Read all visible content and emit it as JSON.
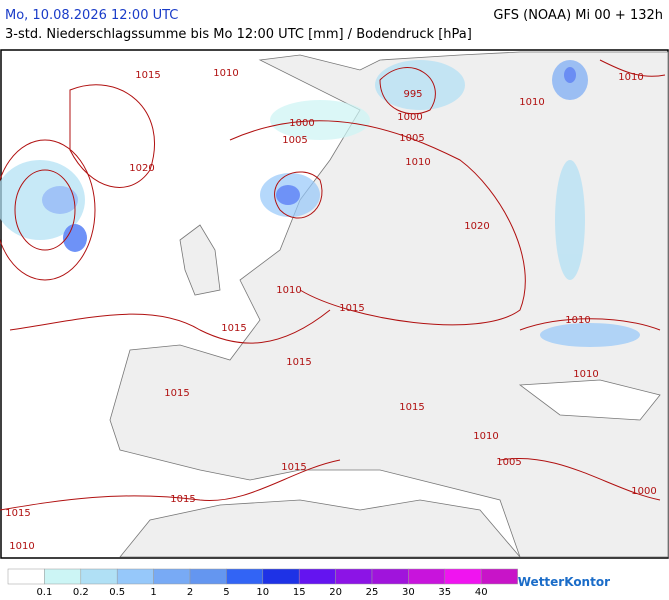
{
  "header": {
    "date": "Mo, 10.08.2026 12:00 UTC",
    "model": "GFS (NOAA) Mi 00 + 132h",
    "subtitle": "3-std. Niederschlagssumme bis Mo 12:00 UTC [mm] / Bodendruck [hPa]"
  },
  "isobar_labels": [
    1015,
    1010,
    1010,
    1010,
    995,
    1000,
    1000,
    1005,
    1005,
    1010,
    1020,
    1020,
    1010,
    1015,
    1015,
    1010,
    1015,
    1010,
    1015,
    1015,
    1010,
    1005,
    1015,
    1015,
    1000,
    1015,
    1010
  ],
  "legend": {
    "colors": [
      "#ffffff",
      "#ccf5f5",
      "#b0e0f5",
      "#96c8fa",
      "#78aaf5",
      "#6496f0",
      "#3264f5",
      "#1e32e6",
      "#6414f0",
      "#8c14e6",
      "#a014dc",
      "#c814dc",
      "#f014f0",
      "#c814c8"
    ],
    "thresholds": [
      0.1,
      0.2,
      0.5,
      1,
      2,
      5,
      10,
      15,
      20,
      25,
      30,
      35,
      40
    ]
  },
  "logo": "WetterKontor"
}
